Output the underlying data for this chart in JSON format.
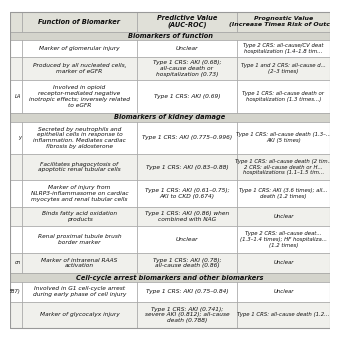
{
  "col_headers": [
    "Function of Biomarker",
    "Predictive Value\n(AUC-ROC)",
    "Prognostic Value\n(Increase Times Risk of Outc..."
  ],
  "section1_header": "Biomarkers of function",
  "section2_header": "Biomarkers of kidney damage",
  "section3_header": "Cell-cycle arrest biomarkers and other biomarkers",
  "rows": [
    {
      "label_left": "",
      "col1": "Marker of glomerular injury",
      "col2": "Unclear",
      "col3": "Type 2 CRS: all-cause/CV deat\nhospitalization (1.4–1.8 tim..."
    },
    {
      "label_left": "",
      "col1": "Produced by all nucleated cells,\nmarker of eGFR",
      "col2": "Type 1 CRS: AKI (0.68);\nall-cause death or\nhospitalization (0.73)",
      "col3": "Type 1 and 2 CRS: all-cause d...\n(2–3 times)"
    },
    {
      "label_left": "LA",
      "col1": "Involved in opioid\nreceptor-mediated negative\ninotropic effects; inversely related\nto eGFR",
      "col2": "Type 1 CRS: AKI (0.69)",
      "col3": "Type 1 CRS: all-cause death or\nhospitalization (1.3 times...)"
    },
    {
      "label_left": "y",
      "col1": "Secreted by neutrophils and\nepithelial cells in response to\ninflammation. Mediates cardiac\nfibrosis by aldosterone",
      "col2": "Type 1 CRS: AKI (0.775–0.996)",
      "col3": "Type 1 CRS: all-cause death (1.3–...\nAKI (5 times)"
    },
    {
      "label_left": "",
      "col1": "Facilitates phagocytosis of\napoptotic renal tubular cells",
      "col2": "Type 1 CRS: AKI (0.83–0.88)",
      "col3": "Type 1 CRS: all-cause death (2 tim...\n2 CRS: all-cause death or H...\nhospitalizations (1.1–1.5 tim..."
    },
    {
      "label_left": "",
      "col1": "Marker of injury from\nNLRP3-inflammasome on cardiac\nmyocytes and renal tubular cells",
      "col2": "Type 1 CRS: AKI (0.61–0.75);\nAKI to CKD (0.674)",
      "col3": "Type 1 CRS: AKI (3.6 times); all...\ndeath (1.2 times)"
    },
    {
      "label_left": "",
      "col1": "Binds fatty acid oxidation\nproducts",
      "col2": "Type 1 CRS: AKI (0.86) when\ncombined with NAG",
      "col3": "Unclear"
    },
    {
      "label_left": "",
      "col1": "Renal proximal tubule brush\nborder marker",
      "col2": "Unclear",
      "col3": "Type 2 CRS: all-cause deat...\n(1.3–1.4 times); HF hospitaliza...\n(1.2 times)"
    },
    {
      "label_left": "on",
      "col1": "Marker of intrarenal RAAS\nactivation",
      "col2": "Type 1 CRS: AKI (0.78);\nall-cause death (0.86)",
      "col3": "Unclear"
    },
    {
      "label_left": "887)",
      "col1": "Involved in G1 cell-cycle arrest\nduring early phase of cell injury",
      "col2": "Type 1 CRS: AKI (0.75–0.84)",
      "col3": "Unclear"
    },
    {
      "label_left": "",
      "col1": "Marker of glycocalyx injury",
      "col2": "Type 1 CRS: AKI (0.741);\nsevere AKI (0.812); all-cause\ndeath (0.788)",
      "col3": "Type 1 CRS: all-cause death (1.2..."
    }
  ],
  "bg_white": "#ffffff",
  "bg_gray": "#f0f0ec",
  "header_bg": "#e0e0d8",
  "section_bg": "#d4d4cc",
  "text_color": "#111111",
  "border_color": "#999999",
  "font_size": 4.2,
  "header_font_size": 4.8,
  "section_font_size": 4.8
}
